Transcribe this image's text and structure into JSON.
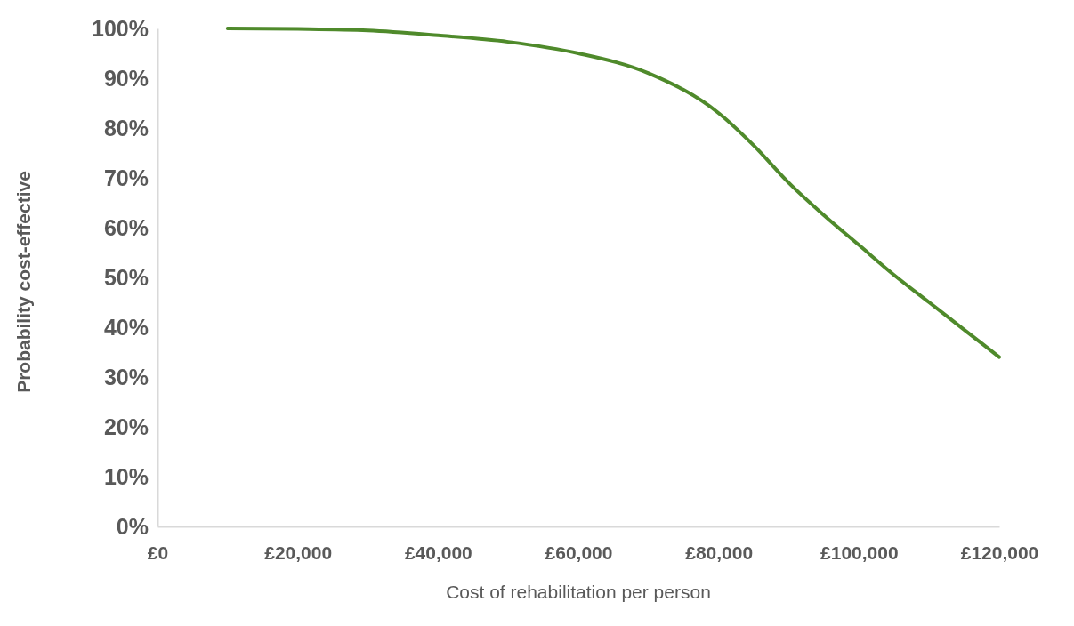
{
  "chart_data": {
    "type": "line",
    "xlabel": "Cost of rehabilitation per person",
    "ylabel": "Probability cost-effective",
    "x": [
      10000,
      20000,
      30000,
      40000,
      50000,
      60000,
      70000,
      80000,
      85000,
      90000,
      95000,
      100000,
      105000,
      110000,
      115000,
      120000
    ],
    "series": [
      {
        "color": "#4f8a2b",
        "values": [
          100,
          99.9,
          99.6,
          98.6,
          97.3,
          95,
          91,
          83,
          76.5,
          69,
          62.5,
          56.5,
          50.5,
          45,
          39.5,
          34
        ]
      }
    ],
    "xlim": [
      0,
      120000
    ],
    "xticks": [
      {
        "value": 0,
        "label": "£0"
      },
      {
        "value": 20000,
        "label": "£20,000"
      },
      {
        "value": 40000,
        "label": "£40,000"
      },
      {
        "value": 60000,
        "label": "£60,000"
      },
      {
        "value": 80000,
        "label": "£80,000"
      },
      {
        "value": 100000,
        "label": "£100,000"
      },
      {
        "value": 120000,
        "label": "£120,000"
      }
    ],
    "ylim": [
      0,
      100
    ],
    "yticks": [
      {
        "value": 0,
        "label": "0%"
      },
      {
        "value": 10,
        "label": "10%"
      },
      {
        "value": 20,
        "label": "20%"
      },
      {
        "value": 30,
        "label": "30%"
      },
      {
        "value": 40,
        "label": "40%"
      },
      {
        "value": 50,
        "label": "50%"
      },
      {
        "value": 60,
        "label": "60%"
      },
      {
        "value": 70,
        "label": "70%"
      },
      {
        "value": 80,
        "label": "80%"
      },
      {
        "value": 90,
        "label": "90%"
      },
      {
        "value": 100,
        "label": "100%"
      }
    ],
    "grid": false,
    "marker": "none",
    "line_style": "solid"
  }
}
